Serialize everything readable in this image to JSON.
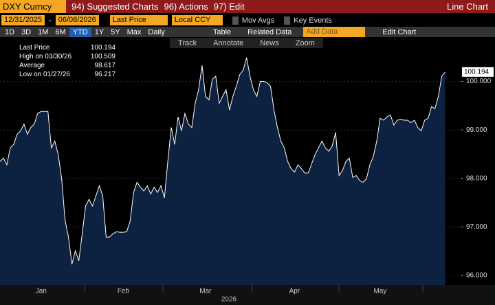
{
  "header": {
    "ticker": "DXY Curncy",
    "menus": [
      "94) Suggested Charts",
      "96) Actions",
      "97) Edit"
    ],
    "chart_label": "Line Chart"
  },
  "controls": {
    "start_date": "12/31/2025",
    "separator": "-",
    "end_date": "06/08/2026",
    "field": "Last Price",
    "currency": "Local CCY",
    "toggles": [
      "Mov Avgs",
      "Key Events"
    ]
  },
  "toolbar": {
    "ranges": [
      "1D",
      "3D",
      "1M",
      "6M",
      "YTD",
      "1Y",
      "5Y",
      "Max"
    ],
    "frequency": "Daily",
    "table": "Table",
    "related": "Related Data",
    "add_data": "Add Data",
    "edit_chart": "Edit Chart"
  },
  "chart_tools": [
    "Track",
    "Annotate",
    "News",
    "Zoom"
  ],
  "legend": [
    {
      "label": "Last Price",
      "value": 100.194
    },
    {
      "label": "High on 03/30/26",
      "value": 100.509
    },
    {
      "label": "Average",
      "value": 98.617
    },
    {
      "label": "Low on 01/27/26",
      "value": 96.217
    }
  ],
  "chart_data": {
    "type": "line",
    "x_title": "2026",
    "color": "#ffffff",
    "fill": "#0d2240",
    "values": [
      98.35,
      98.42,
      98.28,
      98.63,
      98.7,
      98.91,
      98.98,
      99.12,
      98.91,
      99.05,
      99.12,
      99.34,
      99.38,
      99.38,
      99.38,
      98.63,
      98.77,
      98.49,
      97.99,
      97.14,
      96.79,
      96.23,
      96.51,
      96.3,
      96.86,
      97.43,
      97.57,
      97.43,
      97.64,
      97.85,
      97.64,
      96.79,
      96.79,
      96.86,
      96.9,
      96.89,
      96.89,
      96.9,
      97.12,
      97.71,
      97.92,
      97.82,
      97.74,
      97.85,
      97.68,
      97.82,
      97.71,
      97.85,
      97.6,
      98.35,
      99.05,
      98.7,
      99.27,
      98.98,
      99.34,
      99.12,
      99.05,
      99.55,
      99.83,
      100.33,
      99.69,
      99.62,
      100.04,
      100.11,
      99.55,
      99.69,
      99.83,
      99.41,
      99.69,
      99.9,
      100.14,
      100.23,
      100.49,
      100.11,
      99.83,
      99.69,
      100.0,
      100.0,
      99.97,
      99.9,
      99.41,
      99.05,
      98.77,
      98.63,
      98.35,
      98.2,
      98.13,
      98.28,
      98.2,
      98.11,
      98.11,
      98.3,
      98.49,
      98.63,
      98.77,
      98.63,
      98.56,
      98.67,
      98.95,
      98.06,
      98.16,
      98.35,
      98.42,
      98.02,
      98.06,
      97.96,
      97.92,
      97.99,
      98.28,
      98.45,
      98.77,
      99.24,
      99.2,
      99.27,
      99.31,
      99.1,
      99.2,
      99.22,
      99.2,
      99.2,
      99.15,
      99.2,
      99.05,
      98.98,
      99.2,
      99.24,
      99.48,
      99.44,
      99.69,
      100.11,
      100.194
    ],
    "xlim": [
      0,
      134.5
    ],
    "xticks": [
      {
        "value": 12,
        "label": "Jan"
      },
      {
        "value": 36,
        "label": "Feb"
      },
      {
        "value": 60,
        "label": "Mar"
      },
      {
        "value": 86,
        "label": "Apr"
      },
      {
        "value": 111,
        "label": "May"
      }
    ],
    "ylim": [
      95.8,
      100.9
    ],
    "yticks": [
      {
        "value": 96,
        "label": "96.000"
      },
      {
        "value": 97,
        "label": "97.000"
      },
      {
        "value": 98,
        "label": "98.000"
      },
      {
        "value": 99,
        "label": "99.000"
      },
      {
        "value": 100,
        "label": "100.000"
      }
    ],
    "grid": true
  }
}
